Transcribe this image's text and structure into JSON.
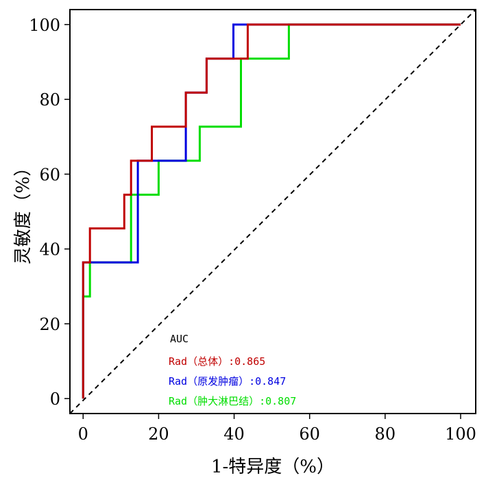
{
  "chart_data": {
    "type": "line",
    "xlabel": "1-特异度（%）",
    "ylabel": "灵敏度（%）",
    "xlim": [
      -3.5,
      104
    ],
    "ylim": [
      -4,
      104
    ],
    "xticks": [
      0,
      20,
      40,
      60,
      80,
      100
    ],
    "yticks": [
      0,
      20,
      40,
      60,
      80,
      100
    ],
    "grid": false,
    "legend": {
      "title": "AUC",
      "placement": "bottom-center",
      "entries": [
        {
          "label": "Rad（总体）:0.865",
          "color": "#c00000"
        },
        {
          "label": "Rad（原发肿瘤）:0.847",
          "color": "#0000e0"
        },
        {
          "label": "Rad（肿大淋巴结）:0.807",
          "color": "#00dd00"
        }
      ]
    },
    "reference_line": {
      "from": [
        -3.5,
        -4
      ],
      "to": [
        104,
        104
      ],
      "style": "dashed",
      "color": "#000000"
    },
    "series": [
      {
        "name": "Rad（总体）:0.865",
        "color": "#c00000",
        "x": [
          0,
          0,
          1.8,
          1.8,
          10.9,
          10.9,
          12.7,
          12.7,
          18.2,
          18.2,
          27.2,
          27.2,
          32.7,
          32.7,
          34.5,
          34.5,
          40.0,
          40.0,
          41.8,
          41.8,
          43.6,
          43.6,
          100
        ],
        "y": [
          0,
          36.4,
          36.4,
          45.5,
          45.5,
          54.5,
          54.5,
          63.6,
          63.6,
          72.7,
          72.7,
          81.8,
          81.8,
          90.9,
          90.9,
          90.9,
          90.9,
          90.9,
          90.9,
          90.9,
          90.9,
          100,
          100
        ]
      },
      {
        "name": "Rad（原发肿瘤）:0.847",
        "color": "#0000e0",
        "x": [
          0,
          0,
          14.5,
          14.5,
          27.2,
          27.2,
          32.7,
          32.7,
          39.8,
          39.8,
          100
        ],
        "y": [
          0,
          36.4,
          36.4,
          63.6,
          63.6,
          81.8,
          81.8,
          90.9,
          90.9,
          100,
          100
        ]
      },
      {
        "name": "Rad（肿大淋巴结）:0.807",
        "color": "#00dd00",
        "x": [
          0,
          0,
          1.8,
          1.8,
          12.7,
          12.7,
          20.0,
          20.0,
          30.9,
          30.9,
          41.8,
          41.8,
          54.5,
          54.5,
          100
        ],
        "y": [
          0,
          27.3,
          27.3,
          36.4,
          36.4,
          54.5,
          54.5,
          63.6,
          63.6,
          72.7,
          72.7,
          90.9,
          90.9,
          100,
          100
        ]
      }
    ]
  }
}
